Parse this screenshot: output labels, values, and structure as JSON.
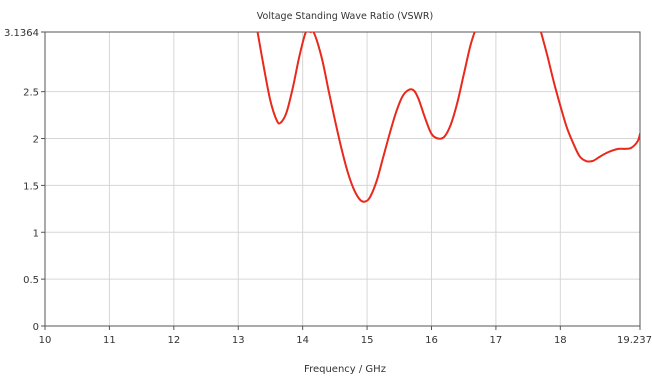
{
  "chart_data": {
    "type": "line",
    "title": "Voltage Standing Wave Ratio (VSWR)",
    "xlabel": "Frequency / GHz",
    "ylabel": "",
    "xlim": [
      10,
      19.237
    ],
    "ylim": [
      0,
      3.1364
    ],
    "x_ticks": [
      10,
      11,
      12,
      13,
      14,
      15,
      16,
      17,
      18,
      19.237
    ],
    "x_tick_labels": [
      "10",
      "11",
      "12",
      "13",
      "14",
      "15",
      "16",
      "17",
      "18",
      "19.237"
    ],
    "y_ticks": [
      0,
      0.5,
      1,
      1.5,
      2,
      2.5,
      3.1364
    ],
    "y_tick_labels": [
      "0",
      "0.5",
      "1",
      "1.5",
      "2",
      "2.5",
      "3.1364"
    ],
    "grid": true,
    "series": [
      {
        "color": "#e8291c",
        "x": [
          13.3,
          13.4,
          13.5,
          13.6,
          13.66,
          13.75,
          13.85,
          13.95,
          14.05,
          14.12,
          14.18,
          14.3,
          14.4,
          14.5,
          14.6,
          14.7,
          14.8,
          14.9,
          14.98,
          15.05,
          15.15,
          15.25,
          15.35,
          15.45,
          15.55,
          15.65,
          15.73,
          15.8,
          15.9,
          16.0,
          16.1,
          16.2,
          16.3,
          16.4,
          16.5,
          16.6,
          16.67
        ],
        "y": [
          3.1364,
          2.75,
          2.4,
          2.19,
          2.17,
          2.28,
          2.55,
          2.88,
          3.1364,
          3.1364,
          3.12,
          2.85,
          2.52,
          2.2,
          1.9,
          1.64,
          1.45,
          1.34,
          1.33,
          1.38,
          1.55,
          1.8,
          2.05,
          2.28,
          2.45,
          2.52,
          2.51,
          2.42,
          2.22,
          2.05,
          2.0,
          2.02,
          2.15,
          2.38,
          2.68,
          2.98,
          3.1364
        ]
      },
      {
        "color": "#e8291c",
        "x": [
          17.7,
          17.8,
          17.9,
          18.0,
          18.1,
          18.2,
          18.3,
          18.4,
          18.5,
          18.6,
          18.7,
          18.8,
          18.9,
          19.0,
          19.1,
          19.2,
          19.237
        ],
        "y": [
          3.1364,
          2.88,
          2.6,
          2.35,
          2.12,
          1.95,
          1.81,
          1.76,
          1.76,
          1.8,
          1.84,
          1.87,
          1.89,
          1.89,
          1.9,
          1.97,
          2.05
        ]
      }
    ]
  }
}
